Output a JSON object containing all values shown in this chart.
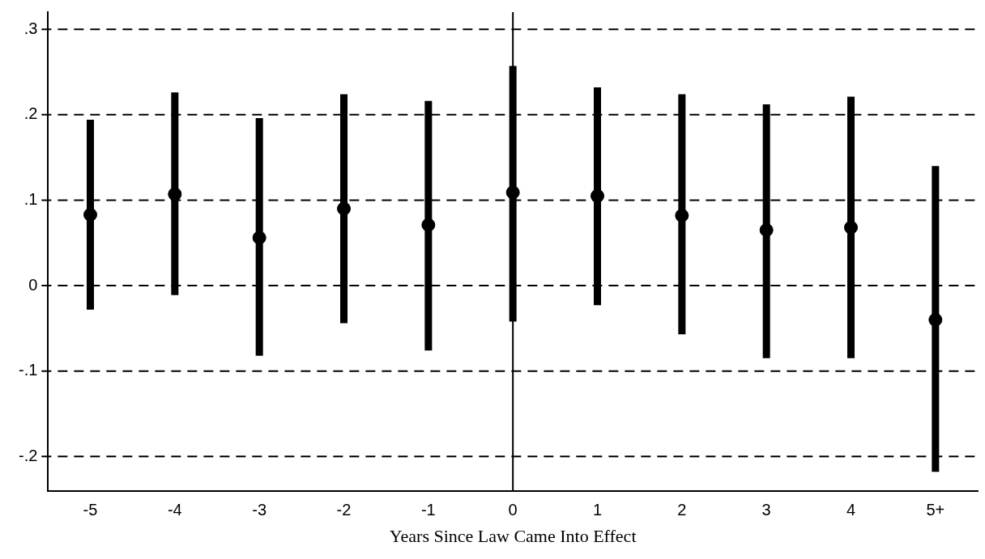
{
  "chart_data": {
    "type": "scatter",
    "xlabel": "Years Since Law Came Into Effect",
    "categories": [
      "-5",
      "-4",
      "-3",
      "-2",
      "-1",
      "0",
      "1",
      "2",
      "3",
      "4",
      "5+"
    ],
    "values": [
      0.083,
      0.107,
      0.056,
      0.09,
      0.071,
      0.109,
      0.105,
      0.082,
      0.065,
      0.068,
      -0.04
    ],
    "errors": [
      [
        -0.028,
        0.194
      ],
      [
        -0.011,
        0.226
      ],
      [
        -0.082,
        0.196
      ],
      [
        -0.044,
        0.224
      ],
      [
        -0.076,
        0.216
      ],
      [
        -0.042,
        0.257
      ],
      [
        -0.023,
        0.232
      ],
      [
        -0.057,
        0.224
      ],
      [
        -0.085,
        0.212
      ],
      [
        -0.085,
        0.221
      ],
      [
        -0.218,
        0.14
      ]
    ],
    "color": "#000000",
    "marker": "circle",
    "ylim": [
      -0.24,
      0.32
    ],
    "yticks": [
      {
        "value": -0.2,
        "label": "-.2"
      },
      {
        "value": -0.1,
        "label": "-.1"
      },
      {
        "value": 0,
        "label": "0"
      },
      {
        "value": 0.1,
        "label": ".1"
      },
      {
        "value": 0.2,
        "label": ".2"
      },
      {
        "value": 0.3,
        "label": ".3"
      }
    ],
    "grid": "y",
    "line_style": "dashed",
    "ref_lines": [
      {
        "axis": "x",
        "value": "0",
        "color": "#000000",
        "line_style": "solid"
      }
    ],
    "legend": false
  }
}
